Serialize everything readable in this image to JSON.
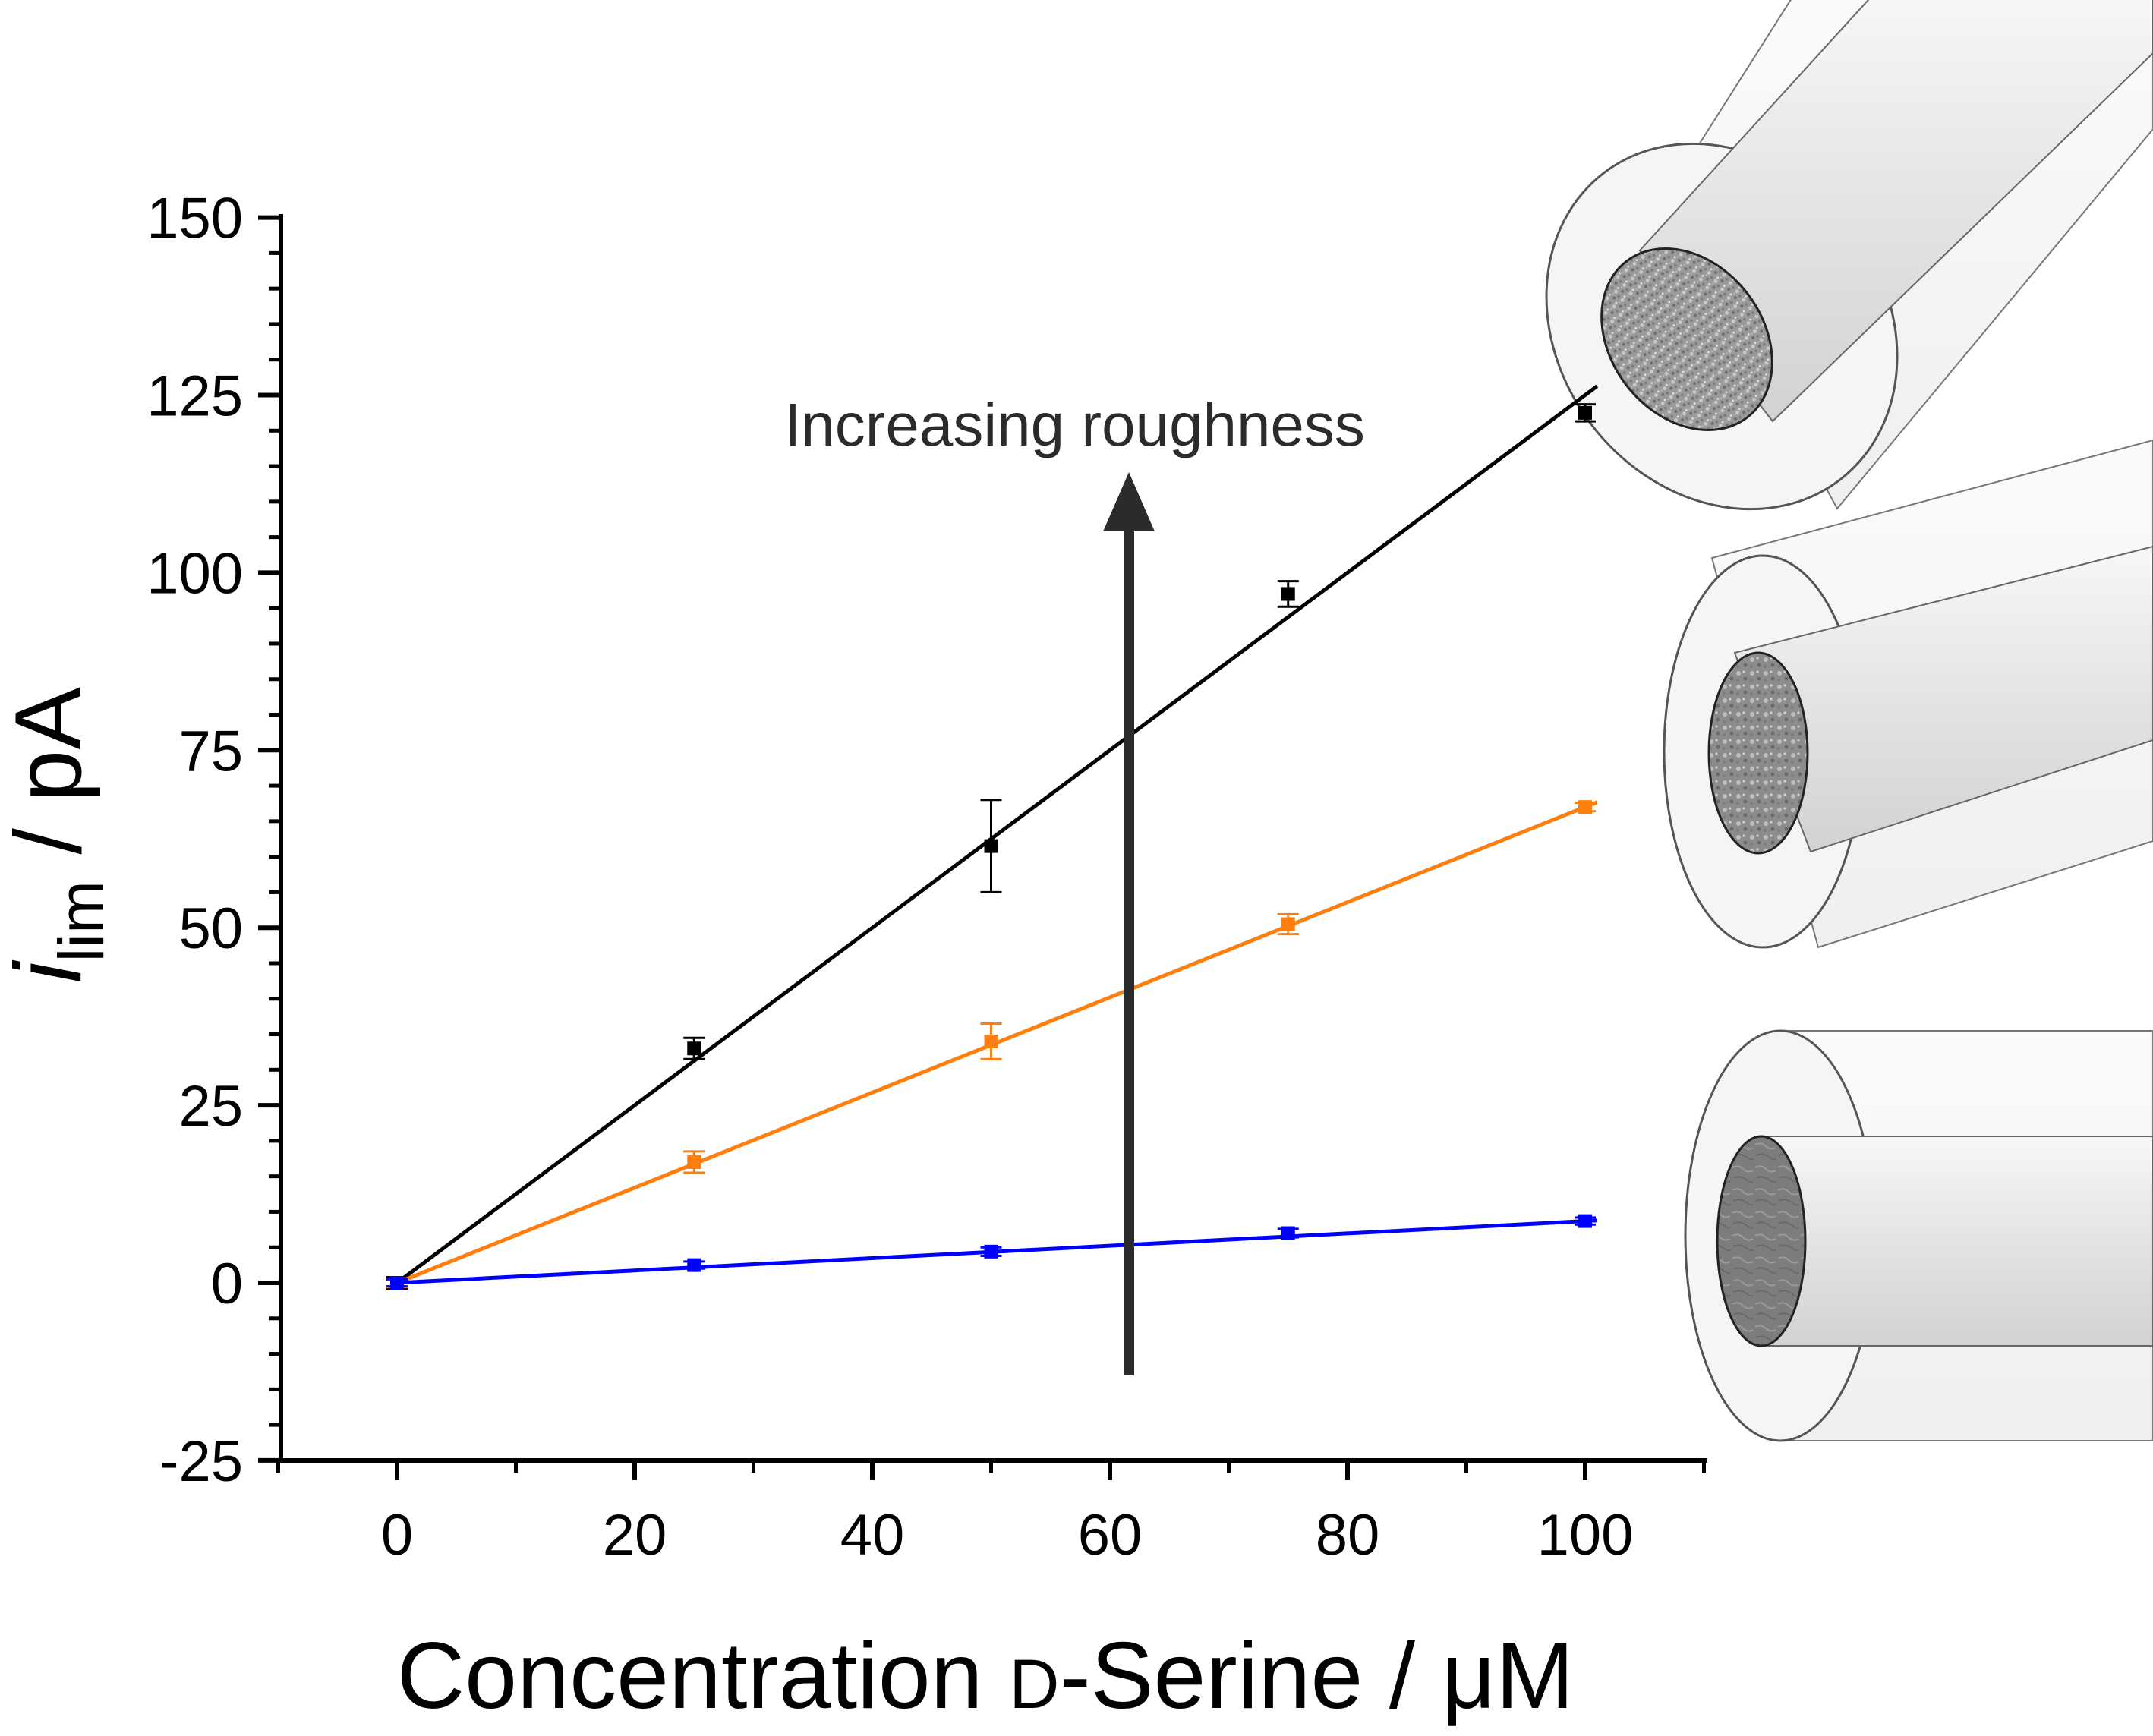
{
  "chart_data": {
    "type": "scatter",
    "xlabel": {
      "main": "Concentration ",
      "smallcaps": "D",
      "rest": "-Serine / μM"
    },
    "ylabel": {
      "italic": "i",
      "subscript": "lim",
      "rest": " / pA"
    },
    "xlim": [
      -10,
      110
    ],
    "ylim": [
      -25,
      150
    ],
    "xticks": [
      0,
      20,
      40,
      60,
      80,
      100
    ],
    "yticks": [
      -25,
      0,
      25,
      50,
      75,
      100,
      125,
      150
    ],
    "series": [
      {
        "color": "#000000",
        "x": [
          0,
          25,
          50,
          75,
          100
        ],
        "y": [
          0,
          33,
          61.5,
          97,
          122.5
        ],
        "err": [
          0.8,
          1.5,
          6.5,
          1.8,
          1.2
        ],
        "fit": [
          0,
          1.25
        ]
      },
      {
        "color": "#ff7f0e",
        "x": [
          0,
          25,
          50,
          75,
          100
        ],
        "y": [
          0,
          17,
          34,
          50.5,
          67
        ],
        "err": [
          0.6,
          1.5,
          2.5,
          1.4,
          0.6
        ],
        "fit": [
          0,
          0.67
        ]
      },
      {
        "color": "#0000ff",
        "x": [
          0,
          25,
          50,
          75,
          100
        ],
        "y": [
          0,
          2.5,
          4.4,
          7,
          8.7
        ],
        "err": [
          0.5,
          0.5,
          0.6,
          0.6,
          0.5
        ],
        "fit": [
          0,
          0.087
        ]
      }
    ],
    "annotation": "Increasing roughness",
    "grid": false
  }
}
